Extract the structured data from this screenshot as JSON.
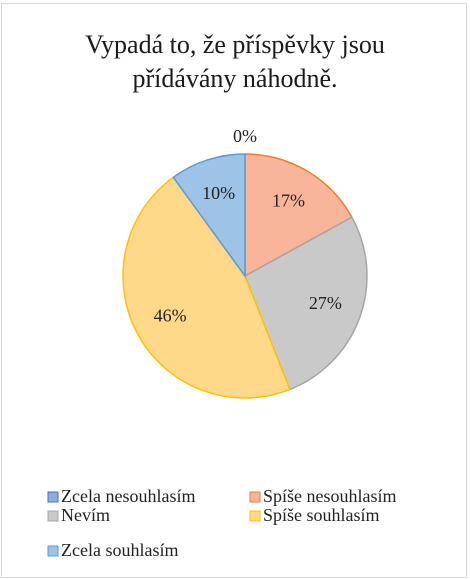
{
  "chart_data": {
    "type": "pie",
    "title": "Vypadá to, že příspěvky jsou přídávány náhodně.",
    "categories": [
      "Zcela nesouhlasím",
      "Spíše nesouhlasím",
      "Nevím",
      "Spíše souhlasím",
      "Zcela souhlasím"
    ],
    "values": [
      0,
      17,
      27,
      46,
      10
    ],
    "value_labels": [
      "0%",
      "17%",
      "27%",
      "46%",
      "10%"
    ],
    "colors": [
      "#8faadc",
      "#f8b59a",
      "#c9c9c9",
      "#ffd98a",
      "#9dc3e6"
    ],
    "edge_colors": [
      "#4472c4",
      "#ed7d31",
      "#a5a5a5",
      "#ffc000",
      "#5b9bd5"
    ],
    "legend": "bottom"
  }
}
